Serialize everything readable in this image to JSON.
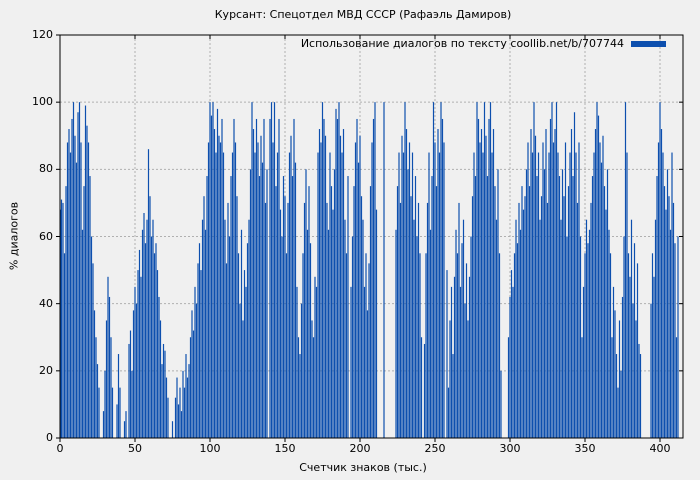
{
  "figure": {
    "background": "#f0f0f0"
  },
  "chart_data": {
    "type": "bar",
    "title": "Курсант: Спецотдел МВД СССР (Рафаэль Дамиров)",
    "legend": {
      "label": "Использование диалогов по тексту coollib.net/b/707744",
      "position": "top-right",
      "swatch_color": "#0d4fae"
    },
    "xlabel": "Счетчик знаков (тыс.)",
    "ylabel": "% диалогов",
    "xlim": [
      0,
      415
    ],
    "ylim": [
      0,
      120
    ],
    "x_ticks": [
      0,
      50,
      100,
      150,
      200,
      250,
      300,
      350,
      400
    ],
    "y_ticks": [
      0,
      20,
      40,
      60,
      80,
      100,
      120
    ],
    "grid": true,
    "bar_color": "#0d4fae",
    "grid_color": "#b0b0b0",
    "border_color": "#000000",
    "text_color": "#000000",
    "x_start": 0,
    "x_step": 1,
    "values": [
      68,
      71,
      70,
      55,
      75,
      88,
      92,
      85,
      95,
      100,
      90,
      82,
      97,
      100,
      88,
      62,
      75,
      99,
      93,
      88,
      78,
      60,
      52,
      38,
      30,
      22,
      15,
      0,
      0,
      8,
      20,
      35,
      48,
      42,
      30,
      15,
      0,
      0,
      10,
      25,
      15,
      0,
      0,
      5,
      8,
      0,
      28,
      32,
      20,
      38,
      45,
      40,
      50,
      56,
      48,
      62,
      67,
      58,
      65,
      86,
      72,
      60,
      65,
      55,
      58,
      50,
      42,
      35,
      22,
      28,
      26,
      18,
      12,
      0,
      0,
      5,
      0,
      12,
      18,
      10,
      15,
      8,
      20,
      15,
      25,
      18,
      22,
      30,
      38,
      32,
      45,
      40,
      52,
      58,
      50,
      65,
      72,
      62,
      78,
      88,
      100,
      96,
      100,
      92,
      85,
      98,
      90,
      88,
      95,
      85,
      65,
      52,
      70,
      60,
      78,
      85,
      95,
      88,
      72,
      55,
      40,
      62,
      35,
      50,
      45,
      58,
      65,
      80,
      100,
      92,
      85,
      95,
      88,
      78,
      90,
      82,
      95,
      70,
      80,
      0,
      95,
      100,
      88,
      100,
      75,
      85,
      95,
      68,
      60,
      78,
      72,
      55,
      70,
      85,
      90,
      78,
      95,
      82,
      45,
      30,
      25,
      40,
      55,
      70,
      80,
      62,
      75,
      58,
      35,
      30,
      48,
      45,
      85,
      92,
      88,
      100,
      95,
      90,
      70,
      62,
      85,
      75,
      68,
      80,
      98,
      95,
      100,
      90,
      85,
      92,
      65,
      55,
      78,
      0,
      45,
      60,
      75,
      88,
      95,
      82,
      90,
      72,
      65,
      45,
      55,
      38,
      52,
      75,
      88,
      95,
      100,
      68,
      0,
      0,
      0,
      0,
      100,
      0,
      0,
      0,
      0,
      0,
      0,
      0,
      62,
      75,
      85,
      70,
      90,
      85,
      100,
      92,
      80,
      88,
      72,
      85,
      65,
      78,
      60,
      70,
      55,
      30,
      0,
      28,
      55,
      70,
      85,
      62,
      78,
      100,
      88,
      75,
      92,
      85,
      100,
      95,
      88,
      0,
      50,
      15,
      35,
      45,
      25,
      48,
      62,
      55,
      70,
      45,
      58,
      65,
      40,
      52,
      35,
      48,
      60,
      72,
      85,
      78,
      100,
      95,
      88,
      92,
      85,
      100,
      90,
      78,
      95,
      100,
      85,
      92,
      75,
      65,
      80,
      55,
      20,
      0,
      0,
      0,
      0,
      30,
      42,
      50,
      45,
      55,
      65,
      58,
      70,
      62,
      75,
      68,
      72,
      80,
      88,
      75,
      92,
      85,
      100,
      90,
      78,
      85,
      65,
      72,
      88,
      80,
      92,
      70,
      85,
      95,
      100,
      88,
      92,
      100,
      85,
      78,
      65,
      80,
      72,
      88,
      60,
      75,
      85,
      92,
      78,
      97,
      85,
      70,
      88,
      60,
      30,
      45,
      55,
      65,
      58,
      62,
      70,
      78,
      85,
      92,
      100,
      96,
      88,
      82,
      90,
      75,
      68,
      80,
      62,
      55,
      30,
      45,
      38,
      25,
      15,
      35,
      20,
      42,
      60,
      100,
      85,
      55,
      48,
      65,
      40,
      58,
      35,
      52,
      28,
      25,
      0,
      0,
      0,
      0,
      0,
      0,
      40,
      55,
      48,
      65,
      78,
      88,
      100,
      92,
      85,
      75,
      68,
      80,
      72,
      62,
      85,
      70,
      58,
      30,
      60
    ]
  }
}
